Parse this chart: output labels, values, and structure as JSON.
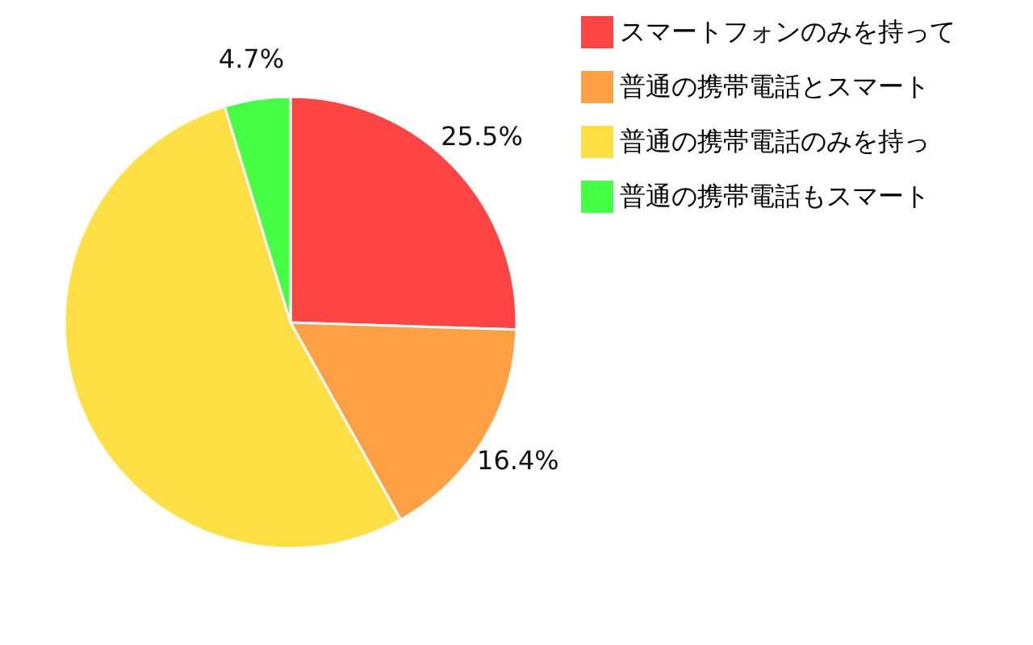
{
  "chart_data": {
    "type": "pie",
    "categories": [
      "スマートフォンのみを持って",
      "普通の携帯電話とスマート",
      "普通の携帯電話のみを持っ",
      "普通の携帯電話もスマート"
    ],
    "values": [
      25.5,
      16.4,
      53.4,
      4.7
    ],
    "colors": [
      "#ff4444",
      "#ffa044",
      "#ffe044",
      "#44ff44"
    ],
    "value_labels": [
      "25.5%",
      "16.4%",
      null,
      "4.7%"
    ],
    "legend": "right"
  }
}
